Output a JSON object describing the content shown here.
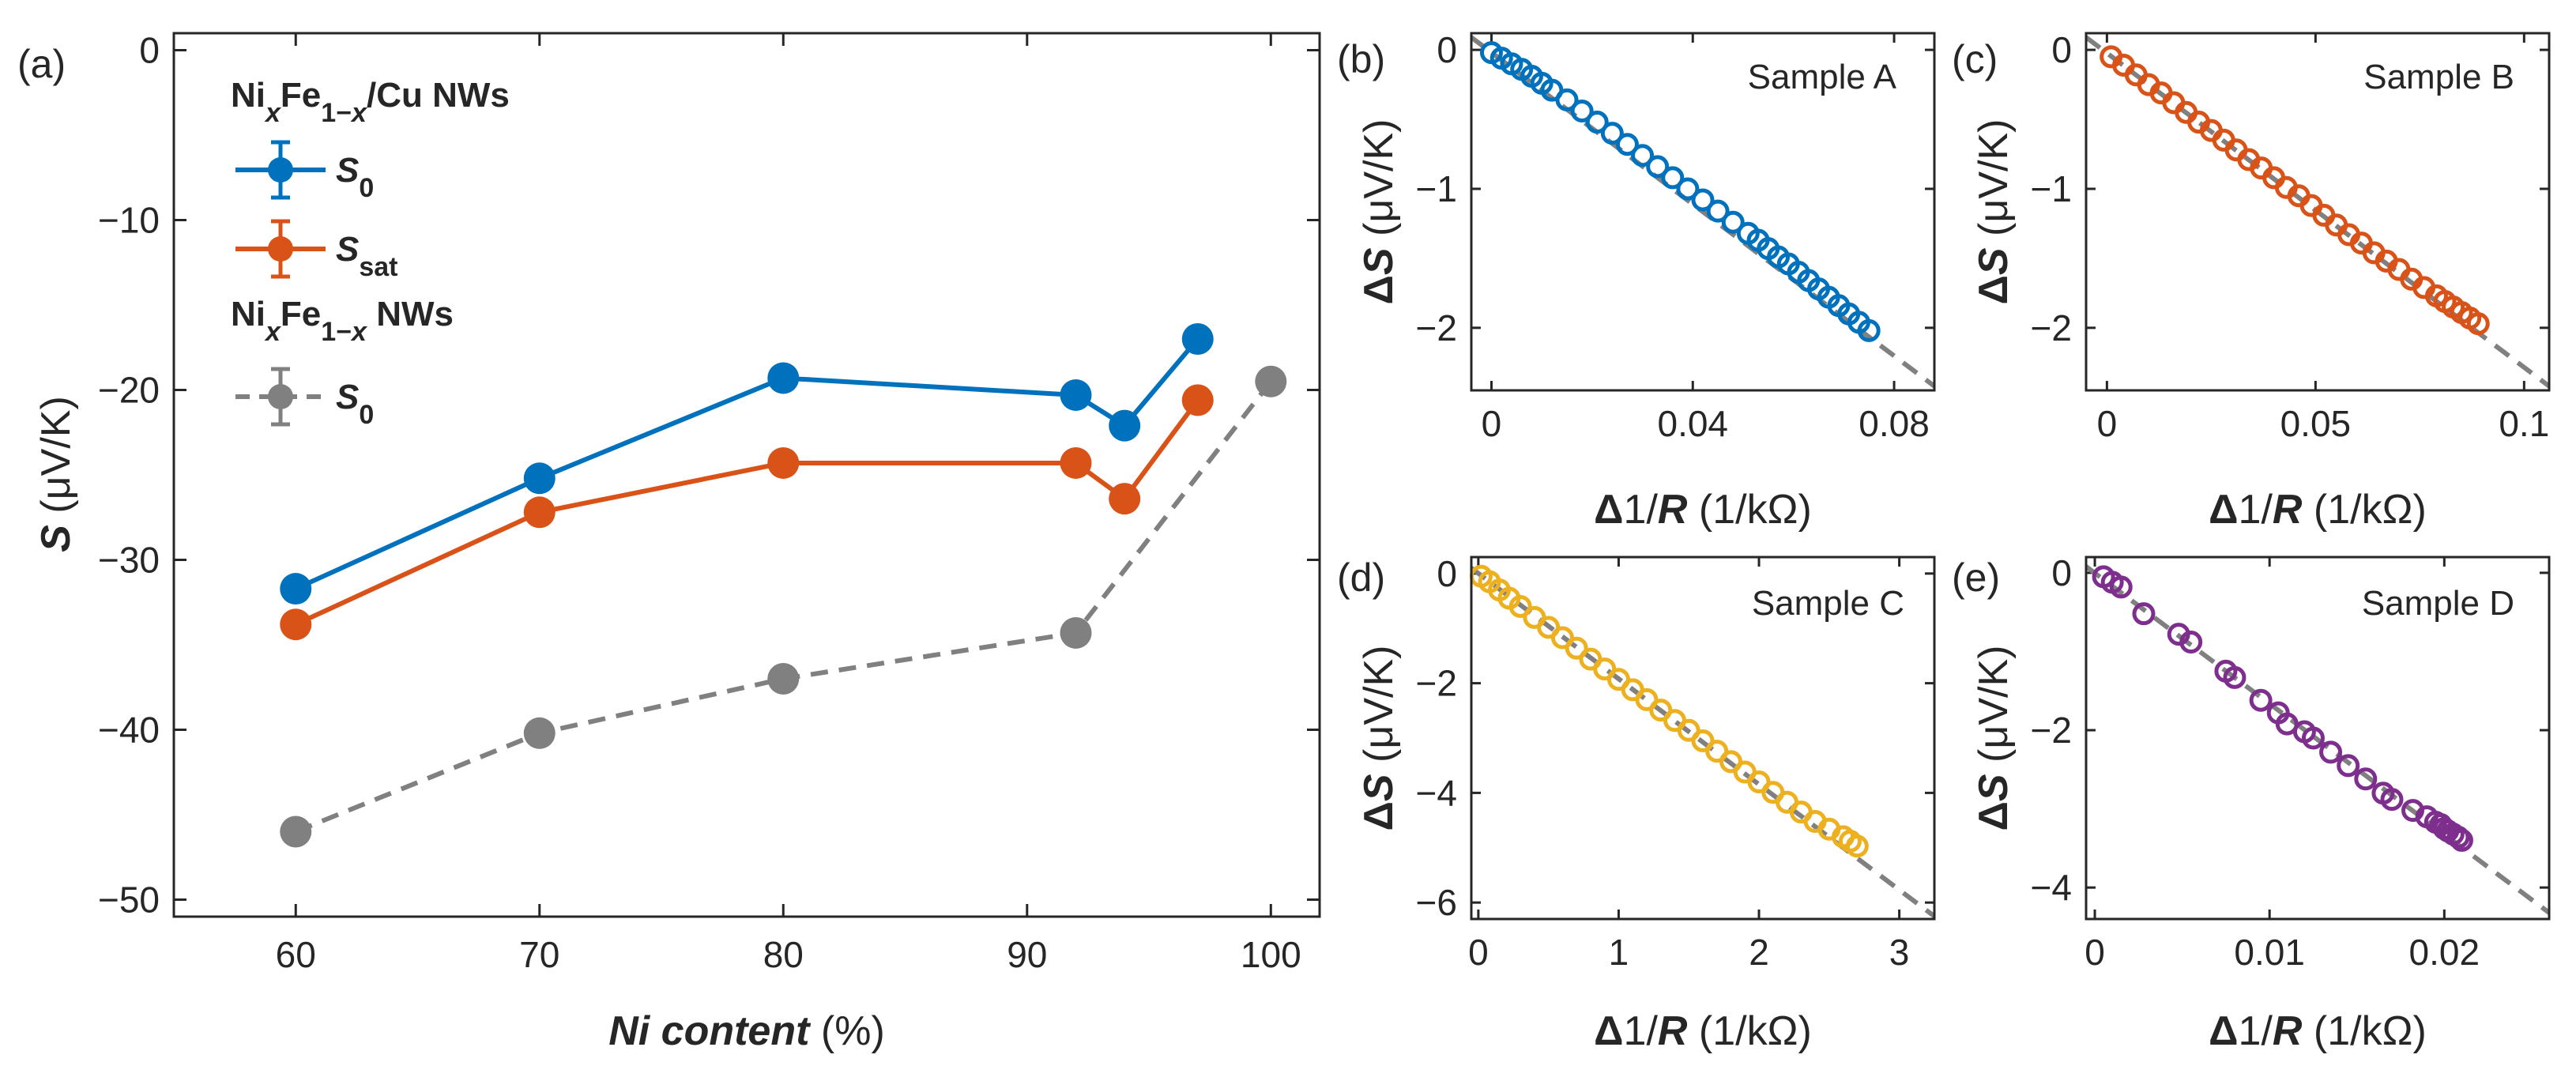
{
  "colors": {
    "blue": "#0072BD",
    "orange": "#D95319",
    "yellow": "#EDB120",
    "purple": "#7E2F8E",
    "gray": "#808080",
    "axis": "#262626"
  },
  "chart_data": [
    {
      "id": "a",
      "panel_label": "(a)",
      "type": "line",
      "xlabel_bold_italic": "Ni content",
      "xlabel_rest": " (%)",
      "ylabel_bold_italic": "S",
      "ylabel_rest": " (μV/K)",
      "xlim": [
        55,
        102
      ],
      "ylim": [
        -51,
        1
      ],
      "xticks": [
        60,
        70,
        80,
        90,
        100
      ],
      "yticks": [
        0,
        -10,
        -20,
        -30,
        -40,
        -50
      ],
      "xtick_labels": [
        "60",
        "70",
        "80",
        "90",
        "100"
      ],
      "ytick_labels": [
        "0",
        "−10",
        "−20",
        "−30",
        "−40",
        "−50"
      ],
      "legend": {
        "header1": "NixFe1−x/Cu NWs",
        "header2": "NixFe1−x NWs",
        "entries": [
          "S0",
          "Ssat",
          "S0"
        ]
      },
      "series": [
        {
          "name": "S0 (NixFe1−x/Cu NWs)",
          "color": "blue",
          "style": "solid",
          "x": [
            60,
            70,
            80,
            92,
            94,
            97
          ],
          "y": [
            -31.7,
            -25.2,
            -19.3,
            -20.3,
            -22.1,
            -17.0
          ]
        },
        {
          "name": "Ssat (NixFe1−x/Cu NWs)",
          "color": "orange",
          "style": "solid",
          "x": [
            60,
            70,
            80,
            92,
            94,
            97
          ],
          "y": [
            -33.8,
            -27.2,
            -24.3,
            -24.3,
            -26.4,
            -20.6
          ]
        },
        {
          "name": "S0 (NixFe1−x NWs)",
          "color": "gray",
          "style": "dashed",
          "x": [
            60,
            70,
            80,
            92,
            100
          ],
          "y": [
            -46.0,
            -40.2,
            -37.0,
            -34.3,
            -19.5
          ]
        }
      ]
    },
    {
      "id": "b",
      "panel_label": "(b)",
      "type": "scatter",
      "sample": "Sample A",
      "color": "blue",
      "xlabel_pre": "Δ",
      "xlabel_rest": " (1/kΩ)",
      "ylabel_pre": "Δ",
      "ylabel_rest": " (μV/K)",
      "xlim": [
        -0.004,
        0.088
      ],
      "ylim": [
        -2.45,
        0.12
      ],
      "xticks": [
        0,
        0.04,
        0.08
      ],
      "yticks": [
        0,
        -1,
        -2
      ],
      "xtick_labels": [
        "0",
        "0.04",
        "0.08"
      ],
      "ytick_labels": [
        "0",
        "−1",
        "−2"
      ],
      "fit": {
        "x": [
          -0.004,
          0.088
        ],
        "y": [
          0.09,
          -2.42
        ]
      },
      "x": [
        0.0,
        0.002,
        0.004,
        0.006,
        0.008,
        0.01,
        0.012,
        0.015,
        0.018,
        0.021,
        0.024,
        0.027,
        0.03,
        0.033,
        0.036,
        0.039,
        0.042,
        0.045,
        0.048,
        0.051,
        0.053,
        0.055,
        0.057,
        0.059,
        0.061,
        0.063,
        0.065,
        0.067,
        0.069,
        0.071,
        0.073,
        0.075
      ],
      "y": [
        -0.02,
        -0.06,
        -0.1,
        -0.14,
        -0.19,
        -0.24,
        -0.29,
        -0.36,
        -0.44,
        -0.52,
        -0.6,
        -0.68,
        -0.76,
        -0.84,
        -0.92,
        -1.0,
        -1.08,
        -1.16,
        -1.24,
        -1.32,
        -1.37,
        -1.43,
        -1.49,
        -1.54,
        -1.6,
        -1.66,
        -1.72,
        -1.78,
        -1.84,
        -1.9,
        -1.96,
        -2.02
      ]
    },
    {
      "id": "c",
      "panel_label": "(c)",
      "type": "scatter",
      "sample": "Sample B",
      "color": "orange",
      "xlabel_pre": "Δ",
      "xlabel_rest": " (1/kΩ)",
      "ylabel_pre": "Δ",
      "ylabel_rest": " (μV/K)",
      "xlim": [
        -0.005,
        0.106
      ],
      "ylim": [
        -2.45,
        0.12
      ],
      "xticks": [
        0,
        0.05,
        0.1
      ],
      "yticks": [
        0,
        -1,
        -2
      ],
      "xtick_labels": [
        "0",
        "0.05",
        "0.1"
      ],
      "ytick_labels": [
        "0",
        "−1",
        "−2"
      ],
      "fit": {
        "x": [
          -0.005,
          0.106
        ],
        "y": [
          0.09,
          -2.42
        ]
      },
      "x": [
        0.001,
        0.004,
        0.007,
        0.01,
        0.013,
        0.016,
        0.019,
        0.022,
        0.025,
        0.028,
        0.031,
        0.034,
        0.037,
        0.04,
        0.043,
        0.046,
        0.049,
        0.052,
        0.055,
        0.058,
        0.061,
        0.064,
        0.067,
        0.07,
        0.073,
        0.076,
        0.079,
        0.081,
        0.083,
        0.085,
        0.087,
        0.089
      ],
      "y": [
        -0.05,
        -0.11,
        -0.18,
        -0.25,
        -0.31,
        -0.38,
        -0.45,
        -0.52,
        -0.58,
        -0.65,
        -0.72,
        -0.79,
        -0.85,
        -0.92,
        -0.99,
        -1.05,
        -1.12,
        -1.19,
        -1.26,
        -1.33,
        -1.39,
        -1.46,
        -1.52,
        -1.58,
        -1.65,
        -1.71,
        -1.77,
        -1.81,
        -1.85,
        -1.89,
        -1.93,
        -1.97
      ]
    },
    {
      "id": "d",
      "panel_label": "(d)",
      "type": "scatter",
      "sample": "Sample C",
      "color": "yellow",
      "xlabel_pre": "Δ",
      "xlabel_rest": " (1/kΩ)",
      "ylabel_pre": "Δ",
      "ylabel_rest": " (μV/K)",
      "xlim": [
        -0.05,
        3.25
      ],
      "ylim": [
        -6.3,
        0.3
      ],
      "xticks": [
        0,
        1,
        2,
        3
      ],
      "yticks": [
        0,
        -2,
        -4,
        -6
      ],
      "xtick_labels": [
        "0",
        "1",
        "2",
        "3"
      ],
      "ytick_labels": [
        "0",
        "−2",
        "−4",
        "−6"
      ],
      "fit": {
        "x": [
          -0.05,
          3.25
        ],
        "y": [
          0.1,
          -6.25
        ]
      },
      "x": [
        0.02,
        0.08,
        0.15,
        0.22,
        0.3,
        0.4,
        0.5,
        0.6,
        0.7,
        0.8,
        0.9,
        1.0,
        1.1,
        1.2,
        1.3,
        1.4,
        1.5,
        1.6,
        1.7,
        1.8,
        1.9,
        2.0,
        2.1,
        2.2,
        2.3,
        2.4,
        2.5,
        2.6,
        2.65,
        2.7
      ],
      "y": [
        -0.05,
        -0.15,
        -0.3,
        -0.45,
        -0.6,
        -0.8,
        -0.98,
        -1.17,
        -1.36,
        -1.56,
        -1.74,
        -1.93,
        -2.12,
        -2.3,
        -2.49,
        -2.68,
        -2.86,
        -3.05,
        -3.24,
        -3.43,
        -3.62,
        -3.8,
        -3.99,
        -4.17,
        -4.35,
        -4.52,
        -4.66,
        -4.8,
        -4.88,
        -4.97
      ]
    },
    {
      "id": "e",
      "panel_label": "(e)",
      "type": "scatter",
      "sample": "Sample D",
      "color": "purple",
      "xlabel_pre": "Δ",
      "xlabel_rest": " (1/kΩ)",
      "ylabel_pre": "Δ",
      "ylabel_rest": " (μV/K)",
      "xlim": [
        -0.0005,
        0.026
      ],
      "ylim": [
        -4.4,
        0.2
      ],
      "xticks": [
        0,
        0.01,
        0.02
      ],
      "yticks": [
        0,
        -2,
        -4
      ],
      "xtick_labels": [
        "0",
        "0.01",
        "0.02"
      ],
      "ytick_labels": [
        "0",
        "−2",
        "−4"
      ],
      "fit": {
        "x": [
          -0.0005,
          0.026
        ],
        "y": [
          0.08,
          -4.32
        ]
      },
      "x": [
        0.0005,
        0.001,
        0.0015,
        0.0028,
        0.0048,
        0.0055,
        0.0075,
        0.008,
        0.0095,
        0.0105,
        0.011,
        0.012,
        0.0125,
        0.0135,
        0.0145,
        0.0155,
        0.0165,
        0.017,
        0.0182,
        0.019,
        0.0195,
        0.0198,
        0.02,
        0.0202,
        0.0205,
        0.0208,
        0.021
      ],
      "y": [
        -0.05,
        -0.12,
        -0.18,
        -0.52,
        -0.78,
        -0.88,
        -1.25,
        -1.33,
        -1.62,
        -1.78,
        -1.92,
        -2.02,
        -2.1,
        -2.28,
        -2.45,
        -2.62,
        -2.8,
        -2.88,
        -3.02,
        -3.1,
        -3.17,
        -3.2,
        -3.25,
        -3.28,
        -3.32,
        -3.36,
        -3.4
      ]
    }
  ]
}
